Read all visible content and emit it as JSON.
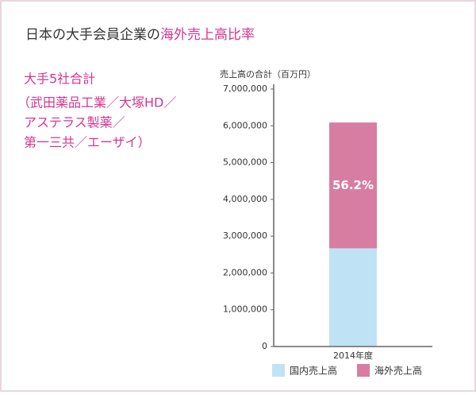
{
  "chart_data": {
    "type": "stacked-bar",
    "title": [
      "日本の大手会員企業の",
      "海外売上高比率"
    ],
    "subtitle": [
      "大手5社合計",
      "（武田薬品工業／大塚HD／",
      "アステラス製薬／",
      "第一三共／エーザイ）"
    ],
    "y_label": "売上高の合計（百万円）",
    "categories": [
      "2014年度"
    ],
    "series": [
      {
        "name": "国内売上高",
        "color": "#bfe3f5",
        "values": [
          2670000
        ]
      },
      {
        "name": "海外売上高",
        "color": "#d77da2",
        "values": [
          3420000
        ]
      }
    ],
    "annotation": "56.2%",
    "ylim": [
      0,
      7000000
    ],
    "yticks": [
      0,
      {
        "value": 1000000,
        "label": "1,000,000"
      },
      {
        "value": 2000000,
        "label": "2,000,000"
      },
      {
        "value": 3000000,
        "label": "3,000,000"
      },
      {
        "value": 4000000,
        "label": "4,000,000"
      },
      {
        "value": 5000000,
        "label": "5,000,000"
      },
      {
        "value": 6000000,
        "label": "6,000,000"
      },
      {
        "value": 7000000,
        "label": "7,000,000"
      }
    ],
    "grid": false,
    "legend": "bottom"
  }
}
